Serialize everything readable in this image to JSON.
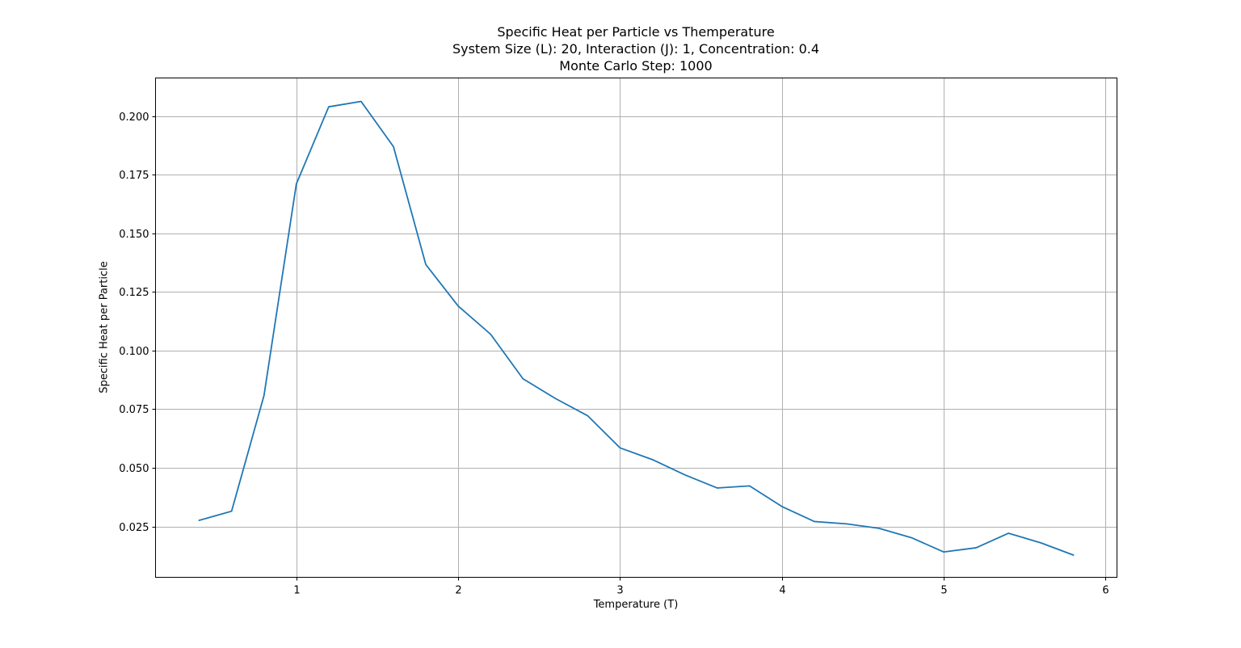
{
  "chart_data": {
    "type": "line",
    "title": "Specific Heat per Particle vs Themperature",
    "subtitle_lines": [
      "System Size (L): 20, Interaction (J): 1, Concentration: 0.4",
      "Monte Carlo Step: 1000"
    ],
    "xlabel": "Temperature (T)",
    "ylabel": "Specific Heat per Particle",
    "xlim": [
      0.13,
      6.07
    ],
    "ylim": [
      0.0033,
      0.2163
    ],
    "xticks": [
      1,
      2,
      3,
      4,
      5,
      6
    ],
    "yticks": [
      0.025,
      0.05,
      0.075,
      0.1,
      0.125,
      0.15,
      0.175,
      0.2
    ],
    "ytick_labels": [
      "0.025",
      "0.050",
      "0.075",
      "0.100",
      "0.125",
      "0.150",
      "0.175",
      "0.200"
    ],
    "grid": true,
    "series": [
      {
        "color": "#1f77b4",
        "x": [
          0.4,
          0.6,
          0.8,
          1.0,
          1.2,
          1.4,
          1.6,
          1.8,
          2.0,
          2.2,
          2.4,
          2.6,
          2.8,
          3.0,
          3.2,
          3.4,
          3.6,
          3.8,
          4.0,
          4.2,
          4.4,
          4.6,
          4.8,
          5.0,
          5.2,
          5.4,
          5.6,
          5.8
        ],
        "y": [
          0.0276,
          0.0315,
          0.0808,
          0.1711,
          0.204,
          0.2063,
          0.187,
          0.1367,
          0.119,
          0.107,
          0.088,
          0.0796,
          0.0722,
          0.0585,
          0.0535,
          0.047,
          0.0414,
          0.0423,
          0.0335,
          0.0271,
          0.0261,
          0.0242,
          0.0202,
          0.0141,
          0.0159,
          0.0221,
          0.018,
          0.0128
        ]
      }
    ]
  }
}
